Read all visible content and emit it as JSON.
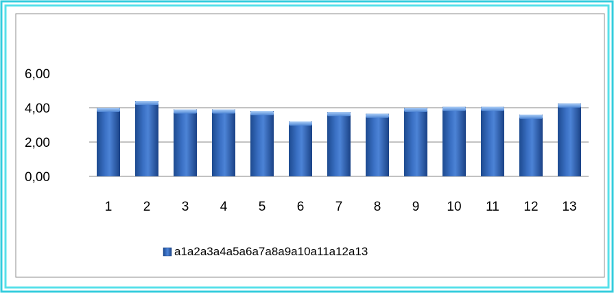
{
  "chart_data": {
    "type": "bar",
    "categories": [
      "1",
      "2",
      "3",
      "4",
      "5",
      "6",
      "7",
      "8",
      "9",
      "10",
      "11",
      "12",
      "13"
    ],
    "series": [
      {
        "name": "a1a2a3a4a5a6a7a8a9a10a11a12a13",
        "values": [
          4.0,
          4.4,
          3.9,
          3.9,
          3.8,
          3.2,
          3.75,
          3.65,
          4.0,
          4.05,
          4.05,
          3.6,
          4.25
        ]
      }
    ],
    "yticks": [
      "0,00",
      "2,00",
      "4,00",
      "6,00"
    ],
    "ylim": [
      0,
      6
    ],
    "grid": true,
    "legend_position": "bottom",
    "colors": {
      "border_outer": "#33ccdd",
      "border_inner": "#57e0ea",
      "bar_dark": "#1f4f96",
      "bar_light": "#6aa1e6",
      "grid": "#868686"
    }
  }
}
